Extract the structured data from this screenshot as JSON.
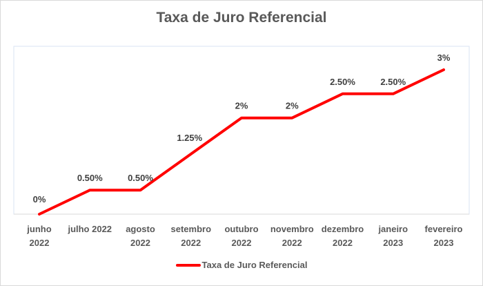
{
  "chart_data": {
    "type": "line",
    "title": "Taxa de Juro Referencial",
    "xlabel": "",
    "ylabel": "",
    "categories": [
      "junho 2022",
      "julho 2022",
      "agosto 2022",
      "setembro 2022",
      "outubro 2022",
      "novembro 2022",
      "dezembro 2022",
      "janeiro 2023",
      "fevereiro 2023"
    ],
    "category_lines": [
      [
        "junho",
        "2022"
      ],
      [
        "julho 2022"
      ],
      [
        "agosto",
        "2022"
      ],
      [
        "setembro",
        "2022"
      ],
      [
        "outubro",
        "2022"
      ],
      [
        "novembro",
        "2022"
      ],
      [
        "dezembro",
        "2022"
      ],
      [
        "janeiro",
        "2023"
      ],
      [
        "fevereiro",
        "2023"
      ]
    ],
    "series": [
      {
        "name": "Taxa de Juro Referencial",
        "color": "#ff0000",
        "values": [
          0,
          0.5,
          0.5,
          1.25,
          2,
          2,
          2.5,
          2.5,
          3
        ],
        "data_labels": [
          "0%",
          "0.50%",
          "0.50%",
          "1.25%",
          "2%",
          "2%",
          "2.50%",
          "2.50%",
          "3%"
        ]
      }
    ],
    "ylim": [
      0,
      3
    ],
    "y_axis_visible": false,
    "grid": false,
    "legend_position": "bottom"
  },
  "legend": {
    "label": "Taxa de Juro Referencial"
  }
}
